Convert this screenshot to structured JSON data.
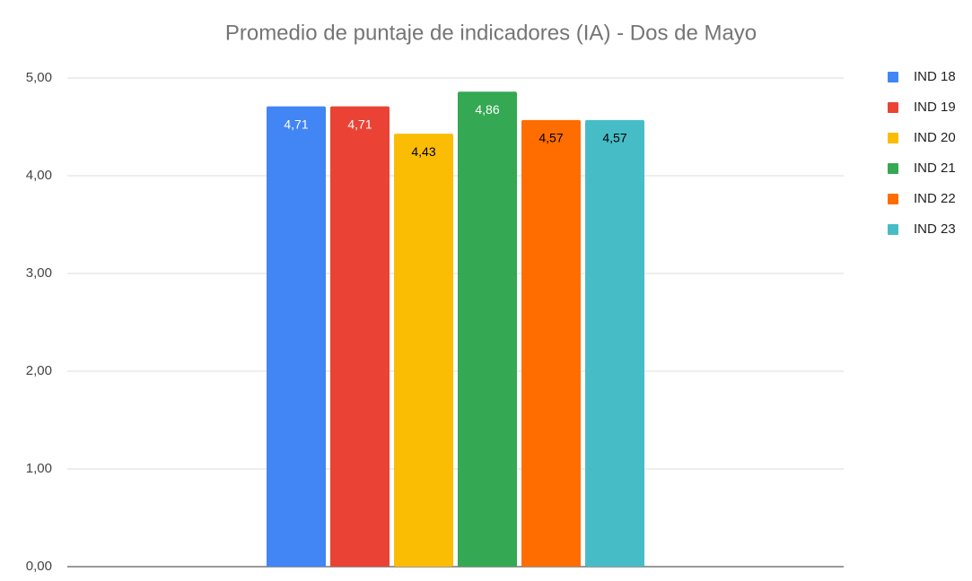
{
  "chart_data": {
    "type": "bar",
    "title": "Promedio de puntaje de indicadores (IA) - Dos de Mayo",
    "categories": [
      null
    ],
    "series": [
      {
        "name": "IND 18",
        "color": "#4285f4",
        "label_color": "#ffffff",
        "values": [
          4.71
        ],
        "value_labels": [
          "4,71"
        ]
      },
      {
        "name": "IND 19",
        "color": "#ea4335",
        "label_color": "#ffffff",
        "values": [
          4.71
        ],
        "value_labels": [
          "4,71"
        ]
      },
      {
        "name": "IND 20",
        "color": "#fbbc04",
        "label_color": "#000000",
        "values": [
          4.43
        ],
        "value_labels": [
          "4,43"
        ]
      },
      {
        "name": "IND 21",
        "color": "#34a853",
        "label_color": "#ffffff",
        "values": [
          4.86
        ],
        "value_labels": [
          "4,86"
        ]
      },
      {
        "name": "IND 22",
        "color": "#ff6d01",
        "label_color": "#000000",
        "values": [
          4.57
        ],
        "value_labels": [
          "4,57"
        ]
      },
      {
        "name": "IND 23",
        "color": "#46bdc6",
        "label_color": "#000000",
        "values": [
          4.57
        ],
        "value_labels": [
          "4,57"
        ]
      }
    ],
    "ylim": [
      0,
      5
    ],
    "yticks": [
      {
        "value": 0,
        "label": "0,00"
      },
      {
        "value": 1,
        "label": "1,00"
      },
      {
        "value": 2,
        "label": "2,00"
      },
      {
        "value": 3,
        "label": "3,00"
      },
      {
        "value": 4,
        "label": "4,00"
      },
      {
        "value": 5,
        "label": "5,00"
      }
    ],
    "grid": true,
    "legend": "right"
  }
}
